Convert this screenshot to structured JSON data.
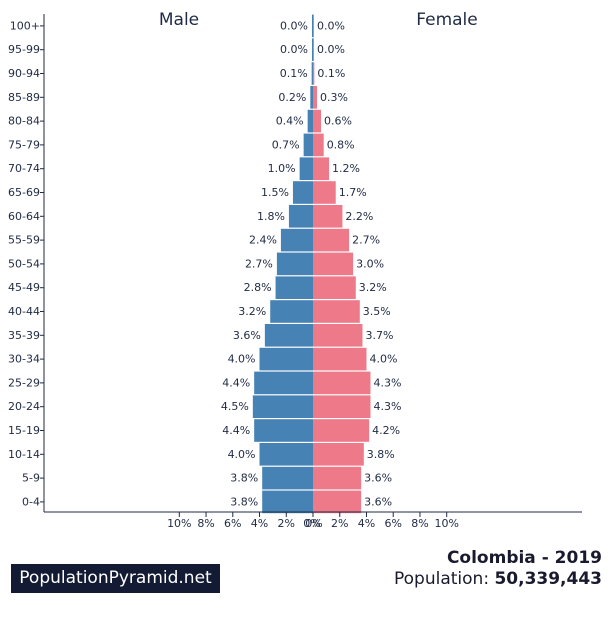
{
  "footer": {
    "brand": "PopulationPyramid.net",
    "country_year": "Colombia - 2019",
    "population_label": "Population:",
    "population_value": "50,339,443"
  },
  "colors": {
    "male": "#4682b4",
    "female": "#ee7989",
    "axis": "#1f2a44"
  },
  "chart_data": {
    "type": "bar",
    "orientation": "horizontal-pyramid",
    "categories": [
      "100+",
      "95-99",
      "90-94",
      "85-89",
      "80-84",
      "75-79",
      "70-74",
      "65-69",
      "60-64",
      "55-59",
      "50-54",
      "45-49",
      "40-44",
      "35-39",
      "30-34",
      "25-29",
      "20-24",
      "15-19",
      "10-14",
      "5-9",
      "0-4"
    ],
    "series": [
      {
        "name": "Male",
        "values": [
          0.0,
          0.0,
          0.1,
          0.2,
          0.4,
          0.7,
          1.0,
          1.5,
          1.8,
          2.4,
          2.7,
          2.8,
          3.2,
          3.6,
          4.0,
          4.4,
          4.5,
          4.4,
          4.0,
          3.8,
          3.8
        ]
      },
      {
        "name": "Female",
        "values": [
          0.0,
          0.0,
          0.1,
          0.3,
          0.6,
          0.8,
          1.2,
          1.7,
          2.2,
          2.7,
          3.0,
          3.2,
          3.5,
          3.7,
          4.0,
          4.3,
          4.3,
          4.2,
          3.8,
          3.6,
          3.6
        ]
      }
    ],
    "xlim": [
      -10,
      10
    ],
    "x_ticks": [
      "10%",
      "8%",
      "6%",
      "4%",
      "2%",
      "0%",
      "0%",
      "2%",
      "4%",
      "6%",
      "8%",
      "10%"
    ],
    "value_suffix": "%",
    "grid": false
  }
}
